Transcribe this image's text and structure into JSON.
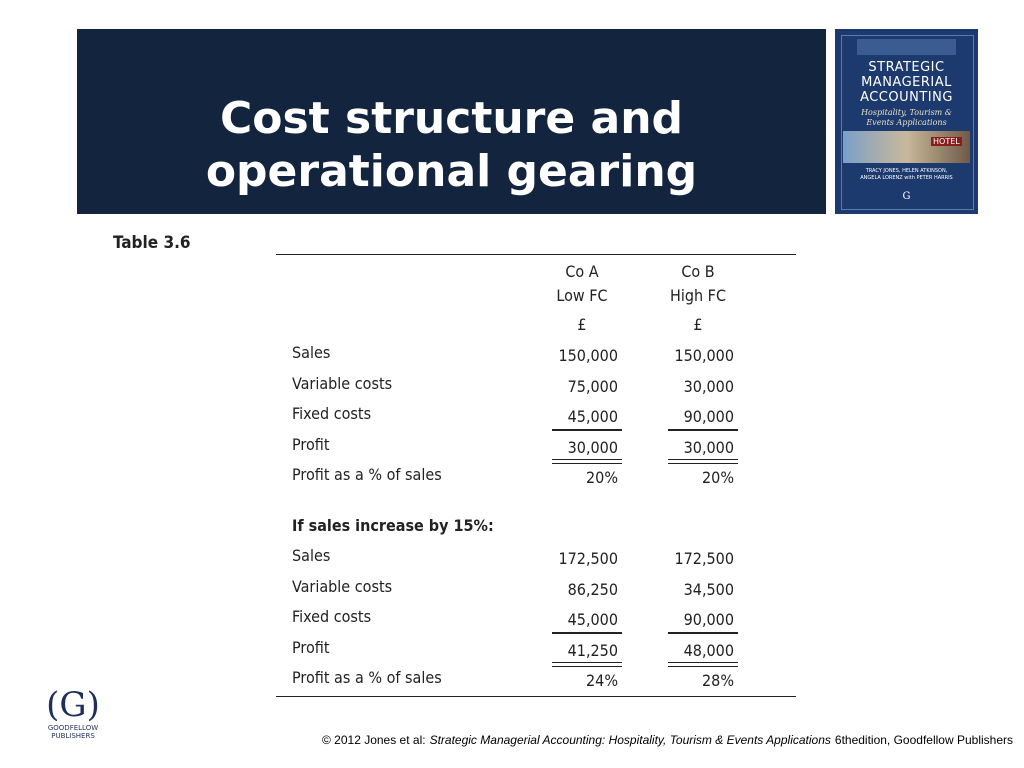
{
  "header": {
    "title_lines": [
      "Cost structure and",
      "operational gearing"
    ]
  },
  "book": {
    "title_lines": [
      "STRATEGIC",
      "MANAGERIAL",
      "ACCOUNTING"
    ],
    "subtitle_lines": [
      "Hospitality, Tourism &",
      "Events Applications"
    ],
    "sign": "HOTEL",
    "authors_lines": [
      "TRACY JONES, HELEN ATKINSON,",
      "ANGELA LORENZ with PETER HARRIS"
    ],
    "logo": "G"
  },
  "table": {
    "caption": "Table 3.6",
    "columns": [
      {
        "name": "Co A",
        "sub": "Low FC",
        "unit": "£"
      },
      {
        "name": "Co B",
        "sub": "High FC",
        "unit": "£"
      }
    ],
    "sections": [
      {
        "rows": [
          {
            "label": "Sales",
            "values": [
              "150,000",
              "150,000"
            ]
          },
          {
            "label": "Variable costs",
            "values": [
              "75,000",
              "30,000"
            ]
          },
          {
            "label": "Fixed costs",
            "values": [
              "45,000",
              "90,000"
            ]
          },
          {
            "label": "Profit",
            "values": [
              "30,000",
              "30,000"
            ]
          },
          {
            "label": "Profit as a % of sales",
            "values": [
              "20%",
              "20%"
            ]
          }
        ]
      },
      {
        "heading": "If sales increase by 15%:",
        "rows": [
          {
            "label": "Sales",
            "values": [
              "172,500",
              "172,500"
            ]
          },
          {
            "label": "Variable costs",
            "values": [
              "86,250",
              "34,500"
            ]
          },
          {
            "label": "Fixed costs",
            "values": [
              "45,000",
              "90,000"
            ]
          },
          {
            "label": "Profit",
            "values": [
              "41,250",
              "48,000"
            ]
          },
          {
            "label": "Profit as a % of sales",
            "values": [
              "24%",
              "28%"
            ]
          }
        ]
      }
    ]
  },
  "logo": {
    "mark": "(G)",
    "lines": [
      "GOODFELLOW",
      "PUBLISHERS"
    ]
  },
  "footer": {
    "prefix": "© 2012 Jones et al:",
    "book": "Strategic Managerial Accounting: Hospitality, Tourism & Events Applications",
    "suffix": "6thedition, Goodfellow Publishers"
  }
}
